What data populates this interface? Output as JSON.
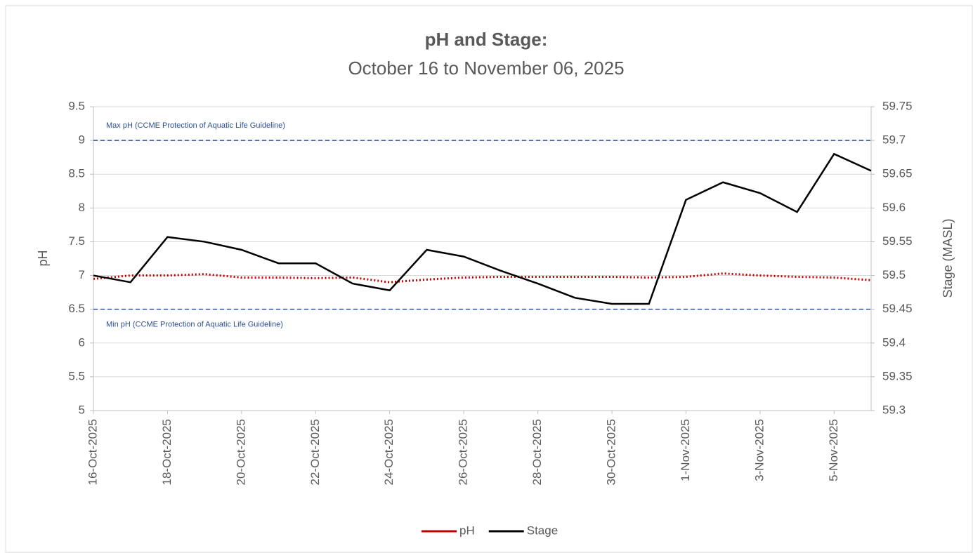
{
  "chart_data": {
    "type": "line",
    "title": "pH and Stage:",
    "subtitle": "October 16 to November 06, 2025",
    "ylabel": "pH",
    "y2label": "Stage (MASL)",
    "x": [
      "2025-10-16",
      "2025-10-17",
      "2025-10-18",
      "2025-10-19",
      "2025-10-20",
      "2025-10-21",
      "2025-10-22",
      "2025-10-23",
      "2025-10-24",
      "2025-10-25",
      "2025-10-26",
      "2025-10-27",
      "2025-10-28",
      "2025-10-29",
      "2025-10-30",
      "2025-10-31",
      "2025-11-01",
      "2025-11-02",
      "2025-11-03",
      "2025-11-04",
      "2025-11-05",
      "2025-11-06"
    ],
    "xlim": [
      "2025-10-16",
      "2025-11-06"
    ],
    "xticks": [
      {
        "value": "2025-10-16",
        "label": "16-Oct-2025"
      },
      {
        "value": "2025-10-18",
        "label": "18-Oct-2025"
      },
      {
        "value": "2025-10-20",
        "label": "20-Oct-2025"
      },
      {
        "value": "2025-10-22",
        "label": "22-Oct-2025"
      },
      {
        "value": "2025-10-24",
        "label": "24-Oct-2025"
      },
      {
        "value": "2025-10-26",
        "label": "26-Oct-2025"
      },
      {
        "value": "2025-10-28",
        "label": "28-Oct-2025"
      },
      {
        "value": "2025-10-30",
        "label": "30-Oct-2025"
      },
      {
        "value": "2025-11-01",
        "label": "1-Nov-2025"
      },
      {
        "value": "2025-11-03",
        "label": "3-Nov-2025"
      },
      {
        "value": "2025-11-05",
        "label": "5-Nov-2025"
      }
    ],
    "ylim": [
      5,
      9.5
    ],
    "yticks": [
      5,
      5.5,
      6,
      6.5,
      7,
      7.5,
      8,
      8.5,
      9,
      9.5
    ],
    "y2lim": [
      59.3,
      59.75
    ],
    "y2ticks": [
      59.3,
      59.35,
      59.4,
      59.45,
      59.5,
      59.55,
      59.6,
      59.65,
      59.7,
      59.75
    ],
    "grid": true,
    "legend": "bottom",
    "series": [
      {
        "name": "pH",
        "color": "#c00000",
        "dash": "dotted",
        "values": [
          6.95,
          7.0,
          7.0,
          7.02,
          6.97,
          6.97,
          6.96,
          6.97,
          6.9,
          6.94,
          6.97,
          6.98,
          6.98,
          6.98,
          6.98,
          6.97,
          6.98,
          7.03,
          7.0,
          6.98,
          6.97,
          6.93
        ]
      },
      {
        "name": "Stage",
        "color": "#000000",
        "axis": "y2",
        "values": [
          59.5,
          59.49,
          59.557,
          59.55,
          59.538,
          59.518,
          59.518,
          59.488,
          59.478,
          59.538,
          59.528,
          59.507,
          59.488,
          59.467,
          59.458,
          59.458,
          59.612,
          59.638,
          59.622,
          59.594,
          59.68,
          59.655
        ]
      }
    ],
    "hlines": [
      {
        "value": 9,
        "label": "Max pH (CCME Protection of Aquatic Life Guideline)",
        "color": "#2f4f8f"
      },
      {
        "value": 6.5,
        "label": "Min pH (CCME  Protection of Aquatic Life Guideline)",
        "color": "#2f4f8f"
      }
    ]
  }
}
